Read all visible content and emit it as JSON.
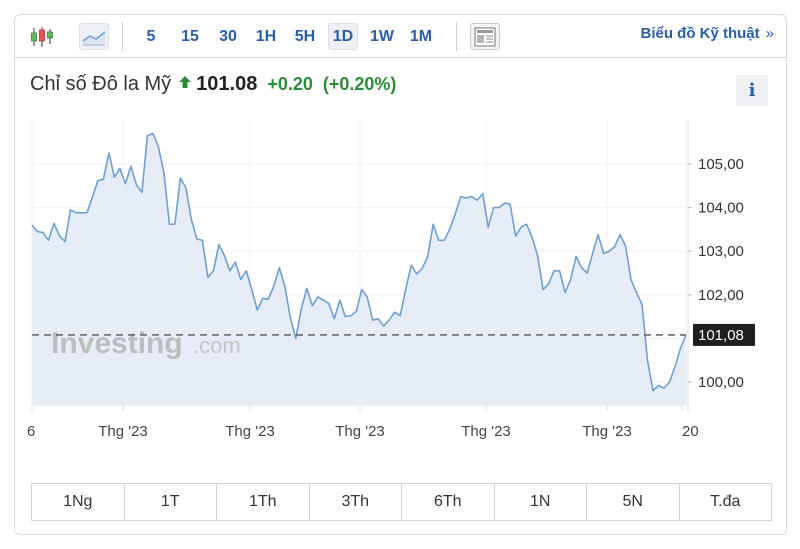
{
  "toolbar": {
    "chart_types": [
      {
        "name": "candlestick-icon",
        "active": false
      },
      {
        "name": "area-chart-icon",
        "active": true
      }
    ],
    "intervals": [
      {
        "label": "5",
        "active": false
      },
      {
        "label": "15",
        "active": false
      },
      {
        "label": "30",
        "active": false
      },
      {
        "label": "1H",
        "active": false
      },
      {
        "label": "5H",
        "active": false
      },
      {
        "label": "1D",
        "active": true
      },
      {
        "label": "1W",
        "active": false
      },
      {
        "label": "1M",
        "active": false
      }
    ],
    "layout_icon": "layout-icon",
    "technical_link": "Biểu đồ Kỹ thuật",
    "technical_link_chevron": "»"
  },
  "quote": {
    "name": "Chỉ số Đô la Mỹ",
    "direction": "up",
    "price": "101.08",
    "change": "+0.20",
    "change_pct": "(+0.20%)",
    "up_color": "#2e8b3a"
  },
  "info_button": "i",
  "ranges": [
    "1Ng",
    "1T",
    "1Th",
    "3Th",
    "6Th",
    "1N",
    "5N",
    "T.đa"
  ],
  "watermark": {
    "brand": "Investing",
    "suffix": ".com"
  },
  "chart_data": {
    "type": "area",
    "title": "Chỉ số Đô la Mỹ",
    "xlabel": "",
    "ylabel": "",
    "ylim": [
      99.5,
      105.6
    ],
    "y_ticks": [
      "105,00",
      "104,00",
      "103,00",
      "102,00",
      "100,00"
    ],
    "y_tick_values": [
      105,
      104,
      103,
      102,
      100
    ],
    "x_tick_labels": [
      "6",
      "Thg '23",
      "Thg '23",
      "Thg '23",
      "Thg '23",
      "Thg '23",
      "20"
    ],
    "current_value_label": "101,08",
    "current_value": 101.08,
    "grid": true,
    "legend": "none",
    "line_color": "#6e9fd0",
    "fill_color": "#e6edf6",
    "values": [
      103.6,
      103.45,
      103.43,
      103.25,
      103.64,
      103.35,
      103.22,
      103.95,
      103.88,
      103.88,
      103.88,
      104.25,
      104.62,
      104.65,
      105.25,
      104.7,
      104.9,
      104.55,
      104.95,
      104.52,
      104.35,
      105.65,
      105.7,
      105.4,
      104.8,
      103.62,
      103.62,
      104.68,
      104.45,
      103.72,
      103.28,
      103.25,
      102.4,
      102.55,
      103.15,
      102.9,
      102.55,
      102.75,
      102.35,
      102.55,
      102.12,
      101.65,
      101.92,
      101.9,
      102.2,
      102.62,
      102.2,
      101.48,
      101.0,
      101.68,
      102.15,
      101.75,
      101.95,
      101.88,
      101.8,
      101.45,
      101.88,
      101.5,
      101.52,
      101.62,
      102.12,
      101.95,
      101.42,
      101.45,
      101.28,
      101.42,
      101.6,
      101.52,
      102.12,
      102.68,
      102.48,
      102.6,
      102.88,
      103.62,
      103.25,
      103.25,
      103.5,
      103.85,
      104.25,
      104.22,
      104.25,
      104.17,
      104.32,
      103.55,
      104.0,
      104.0,
      104.1,
      104.08,
      103.35,
      103.55,
      103.62,
      103.32,
      102.9,
      102.12,
      102.25,
      102.55,
      102.55,
      102.05,
      102.35,
      102.88,
      102.62,
      102.5,
      102.95,
      103.38,
      102.95,
      103.0,
      103.1,
      103.38,
      103.12,
      102.35,
      102.05,
      101.78,
      100.5,
      99.8,
      99.92,
      99.86,
      100.0,
      100.35,
      100.78,
      101.08
    ]
  }
}
